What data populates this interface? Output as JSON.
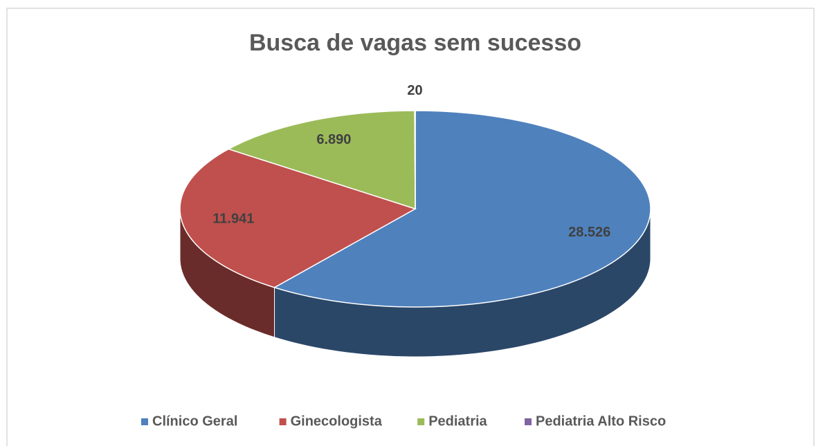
{
  "chart_data": {
    "type": "pie3d",
    "title": "Busca de vagas sem sucesso",
    "categories": [
      "Clínico Geral",
      "Ginecologista",
      "Pediatria",
      "Pediatria Alto Risco"
    ],
    "values": [
      28526,
      11941,
      6890,
      20
    ],
    "value_labels": [
      "28.526",
      "11.941",
      "6.890",
      "20"
    ],
    "colors": [
      "#4f81bd",
      "#c0504d",
      "#9bbb59",
      "#8064a2"
    ],
    "legend": "bottom"
  }
}
